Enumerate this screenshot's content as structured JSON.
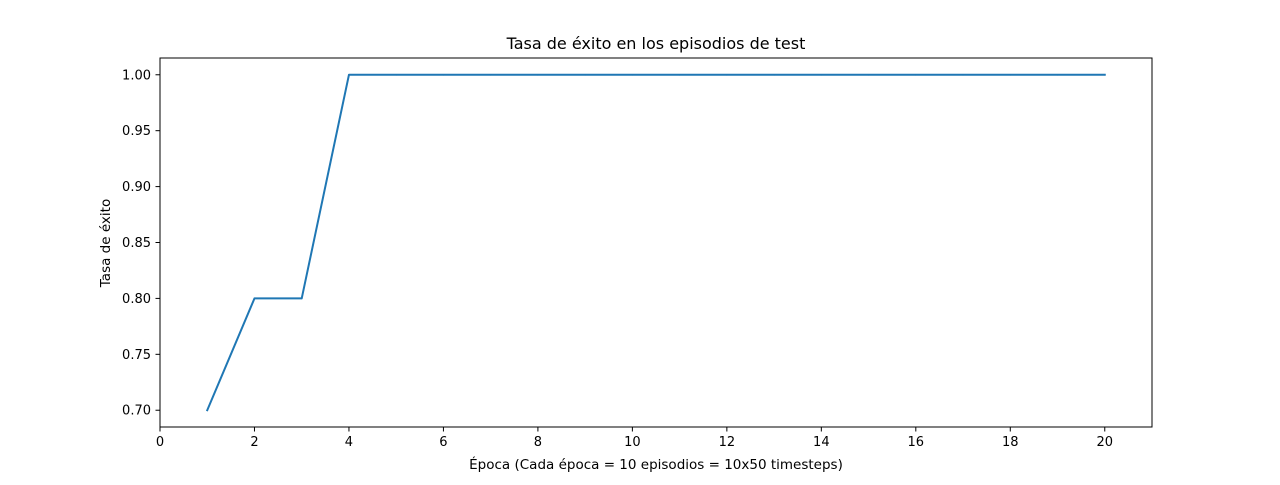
{
  "chart_data": {
    "type": "line",
    "title": "Tasa de éxito en los episodios de test",
    "xlabel": "Época (Cada época = 10 episodios = 10x50 timesteps)",
    "ylabel": "Tasa de éxito",
    "xlim": [
      0,
      21
    ],
    "ylim": [
      0.685,
      1.015
    ],
    "xticks": [
      0,
      2,
      4,
      6,
      8,
      10,
      12,
      14,
      16,
      18,
      20
    ],
    "xtick_labels": [
      "0",
      "2",
      "4",
      "6",
      "8",
      "10",
      "12",
      "14",
      "16",
      "18",
      "20"
    ],
    "yticks": [
      0.7,
      0.75,
      0.8,
      0.85,
      0.9,
      0.95,
      1.0
    ],
    "ytick_labels": [
      "0.70",
      "0.75",
      "0.80",
      "0.85",
      "0.90",
      "0.95",
      "1.00"
    ],
    "grid": false,
    "series": [
      {
        "color": "#1f77b4",
        "x": [
          1,
          2,
          3,
          4,
          5,
          6,
          7,
          8,
          9,
          10,
          11,
          12,
          13,
          14,
          15,
          16,
          17,
          18,
          19,
          20
        ],
        "y": [
          0.7,
          0.8,
          0.8,
          1.0,
          1.0,
          1.0,
          1.0,
          1.0,
          1.0,
          1.0,
          1.0,
          1.0,
          1.0,
          1.0,
          1.0,
          1.0,
          1.0,
          1.0,
          1.0,
          1.0
        ]
      }
    ]
  }
}
